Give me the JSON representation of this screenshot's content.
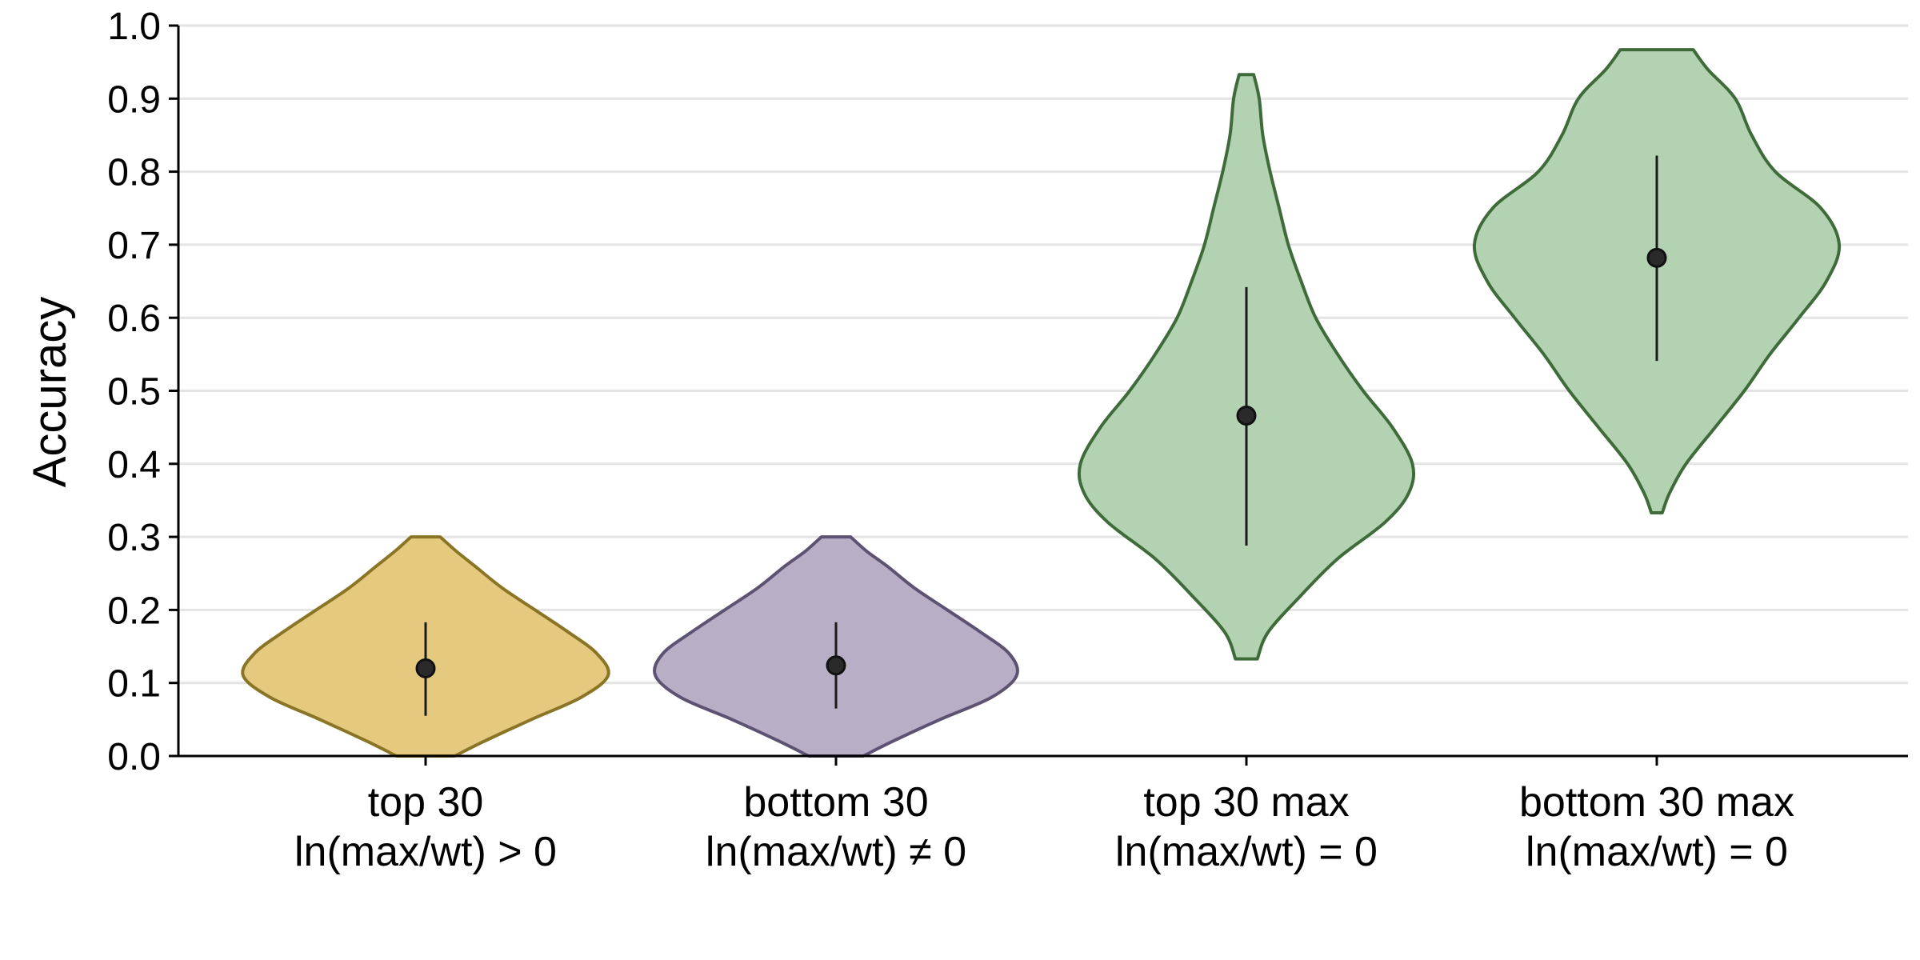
{
  "chart_data": {
    "type": "violin",
    "title": "",
    "xlabel": "",
    "ylabel": "Accuracy",
    "ylim": [
      0,
      1
    ],
    "yticks": [
      0.0,
      0.1,
      0.2,
      0.3,
      0.4,
      0.5,
      0.6,
      0.7,
      0.8,
      0.9,
      1.0
    ],
    "ytick_labels": [
      "0.0",
      "0.1",
      "0.2",
      "0.3",
      "0.4",
      "0.5",
      "0.6",
      "0.7",
      "0.8",
      "0.9",
      "1.0"
    ],
    "grid": "horizontal",
    "categories": [
      {
        "line1": "top 30",
        "line2": "ln(max/wt) > 0",
        "fill": "#e4c97e",
        "stroke": "#8a7425",
        "min": 0.0,
        "max": 0.3,
        "mean": 0.12,
        "ci": [
          0.055,
          0.183
        ],
        "density": [
          [
            0.0,
            0.16
          ],
          [
            0.02,
            0.32
          ],
          [
            0.05,
            0.58
          ],
          [
            0.08,
            0.85
          ],
          [
            0.11,
            1.0
          ],
          [
            0.14,
            0.94
          ],
          [
            0.17,
            0.78
          ],
          [
            0.2,
            0.6
          ],
          [
            0.23,
            0.42
          ],
          [
            0.26,
            0.27
          ],
          [
            0.28,
            0.17
          ],
          [
            0.3,
            0.08
          ]
        ]
      },
      {
        "line1": "bottom 30",
        "line2": "ln(max/wt) ≠ 0",
        "fill": "#b8aec6",
        "stroke": "#5e5273",
        "min": 0.0,
        "max": 0.3,
        "mean": 0.124,
        "ci": [
          0.065,
          0.183
        ],
        "density": [
          [
            0.0,
            0.15
          ],
          [
            0.02,
            0.31
          ],
          [
            0.05,
            0.57
          ],
          [
            0.08,
            0.85
          ],
          [
            0.11,
            0.99
          ],
          [
            0.14,
            0.95
          ],
          [
            0.17,
            0.79
          ],
          [
            0.2,
            0.61
          ],
          [
            0.23,
            0.43
          ],
          [
            0.26,
            0.28
          ],
          [
            0.28,
            0.17
          ],
          [
            0.3,
            0.08
          ]
        ]
      },
      {
        "line1": "top 30 max",
        "line2": "ln(max/wt) = 0",
        "fill": "#b2d2b1",
        "stroke": "#3f6b3b",
        "min": 0.133,
        "max": 0.933,
        "mean": 0.466,
        "ci": [
          0.288,
          0.642
        ],
        "density": [
          [
            0.133,
            0.06
          ],
          [
            0.17,
            0.12
          ],
          [
            0.22,
            0.3
          ],
          [
            0.27,
            0.5
          ],
          [
            0.32,
            0.76
          ],
          [
            0.36,
            0.89
          ],
          [
            0.4,
            0.91
          ],
          [
            0.45,
            0.8
          ],
          [
            0.5,
            0.64
          ],
          [
            0.55,
            0.5
          ],
          [
            0.6,
            0.38
          ],
          [
            0.65,
            0.3
          ],
          [
            0.7,
            0.23
          ],
          [
            0.75,
            0.18
          ],
          [
            0.8,
            0.13
          ],
          [
            0.85,
            0.09
          ],
          [
            0.9,
            0.07
          ],
          [
            0.933,
            0.04
          ]
        ]
      },
      {
        "line1": "bottom 30 max",
        "line2": "ln(max/wt) = 0",
        "fill": "#b2d2b1",
        "stroke": "#3f6b3b",
        "min": 0.333,
        "max": 0.967,
        "mean": 0.682,
        "ci": [
          0.541,
          0.822
        ],
        "density": [
          [
            0.333,
            0.03
          ],
          [
            0.36,
            0.07
          ],
          [
            0.4,
            0.16
          ],
          [
            0.45,
            0.32
          ],
          [
            0.5,
            0.48
          ],
          [
            0.55,
            0.62
          ],
          [
            0.6,
            0.78
          ],
          [
            0.65,
            0.93
          ],
          [
            0.7,
            1.0
          ],
          [
            0.75,
            0.9
          ],
          [
            0.8,
            0.65
          ],
          [
            0.85,
            0.52
          ],
          [
            0.9,
            0.43
          ],
          [
            0.94,
            0.28
          ],
          [
            0.967,
            0.2
          ]
        ]
      }
    ]
  }
}
